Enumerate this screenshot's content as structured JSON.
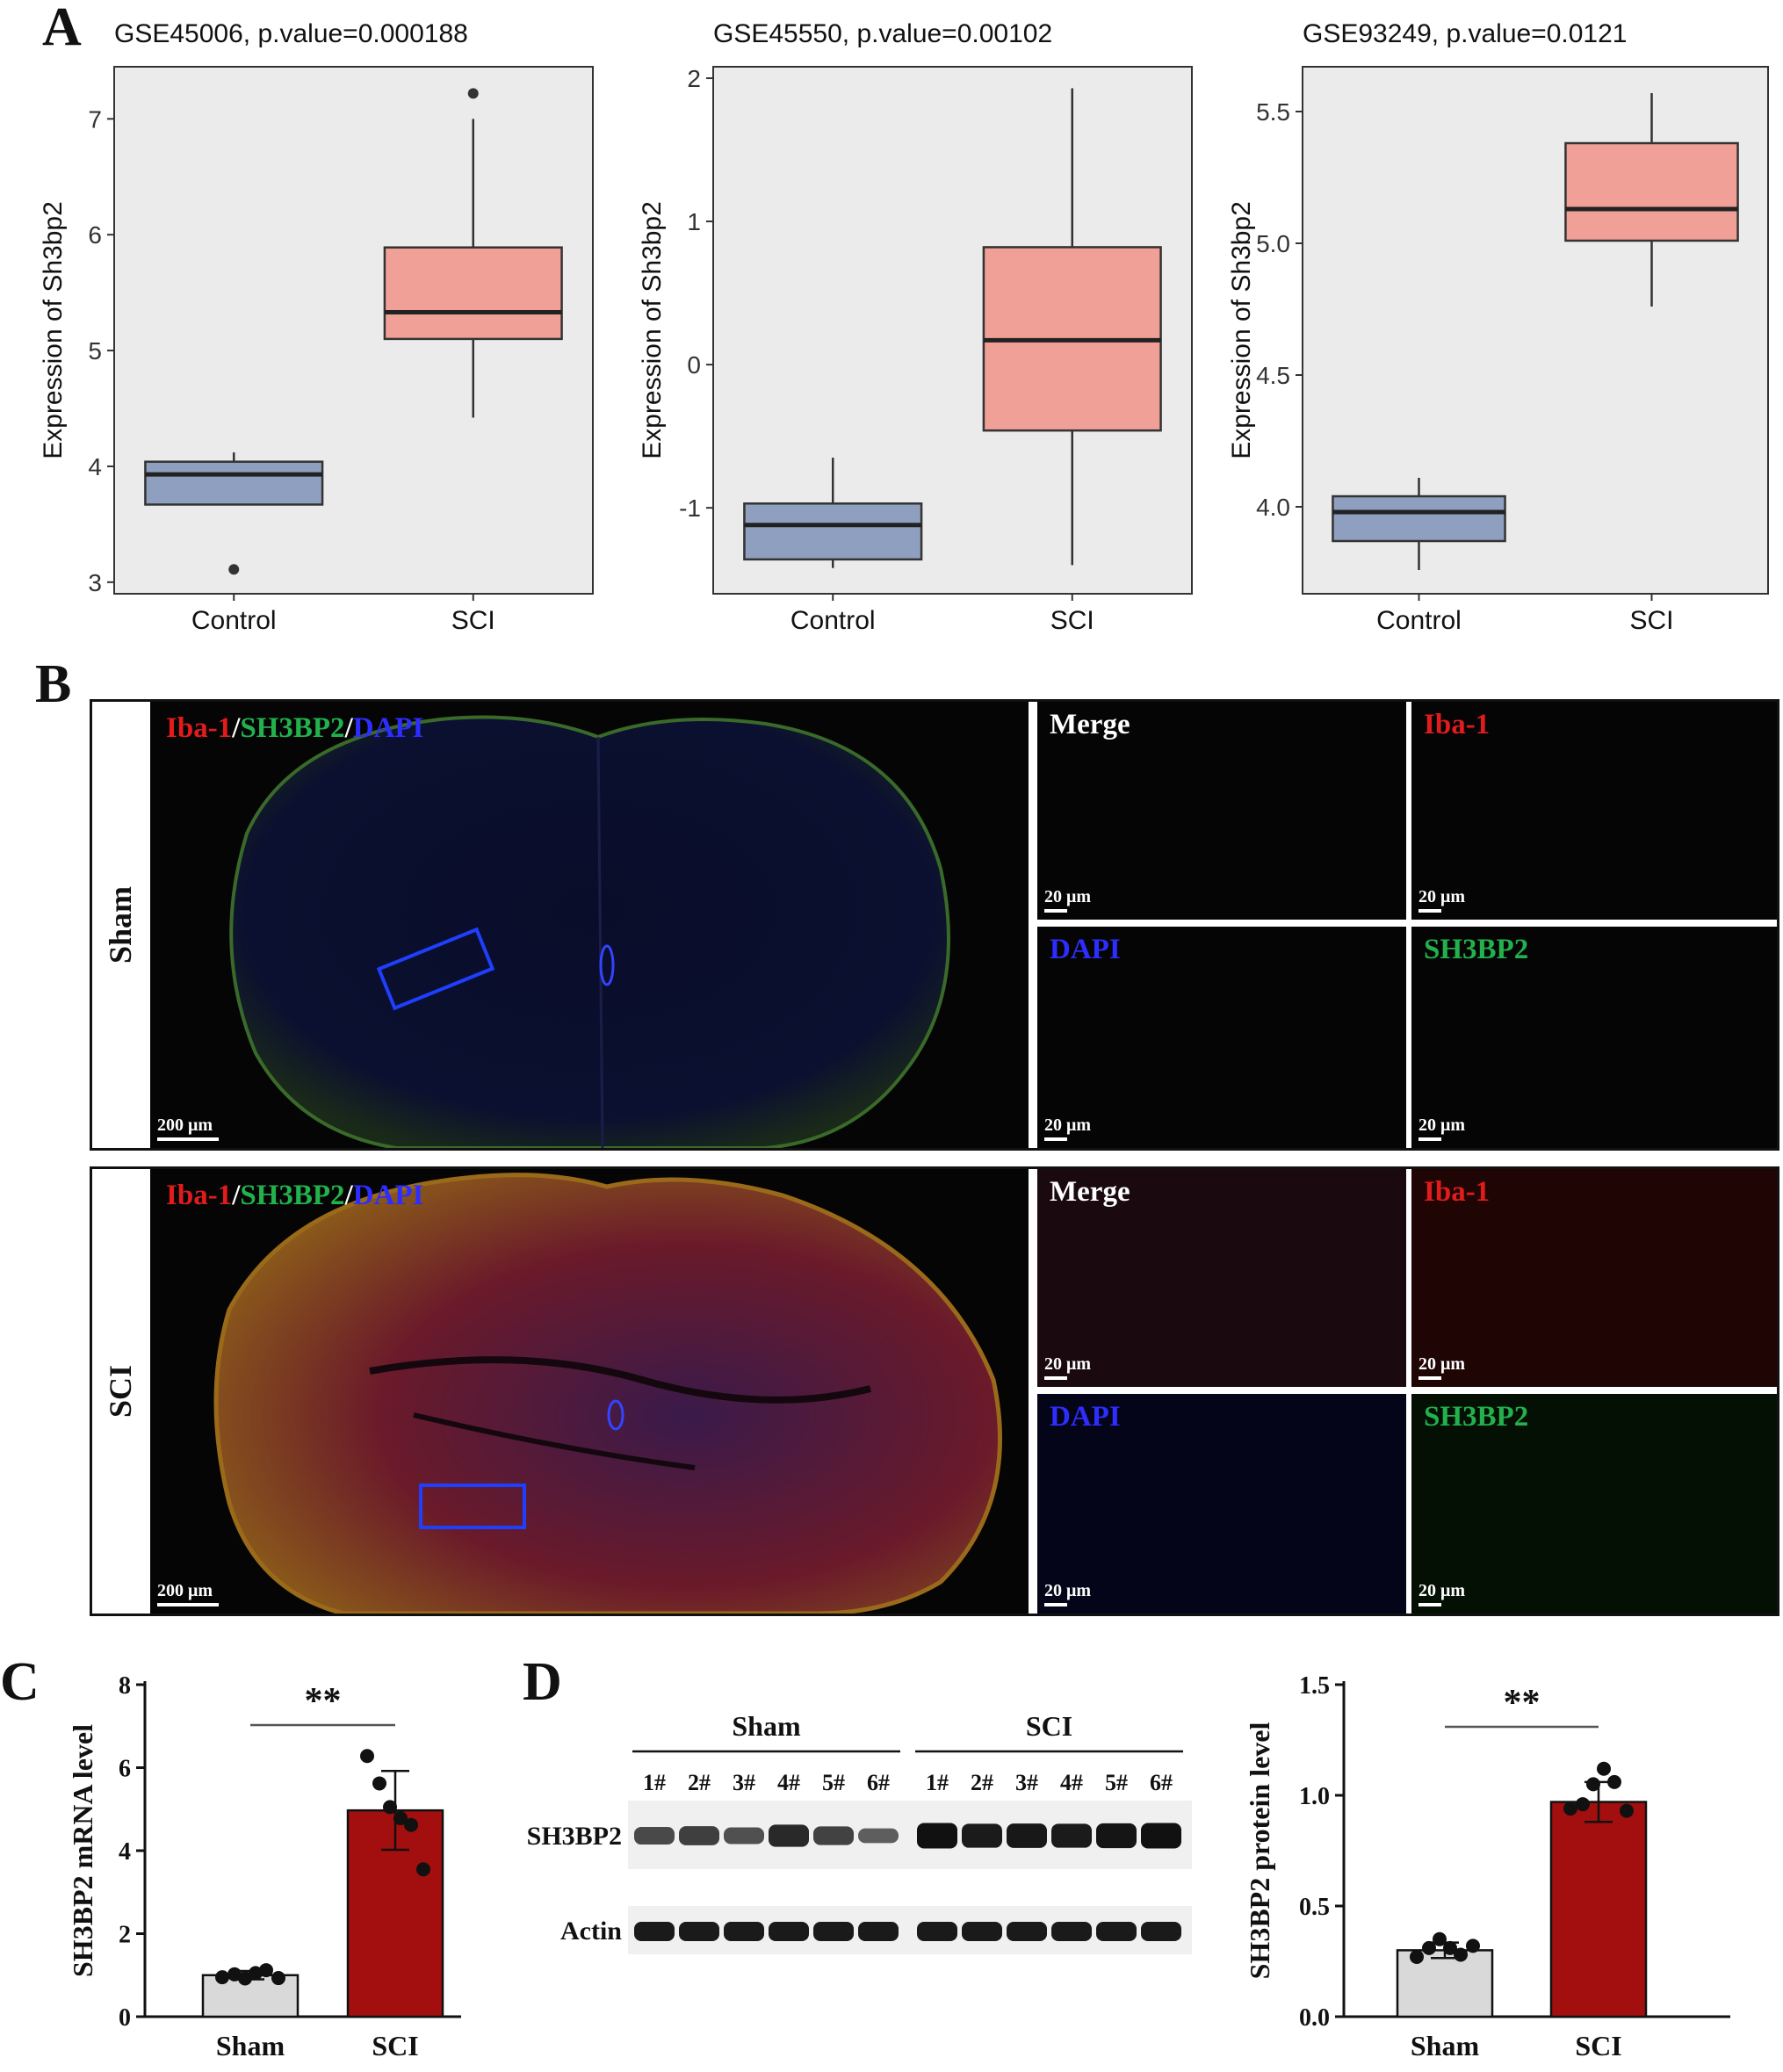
{
  "panels": {
    "a": "A",
    "b": "B",
    "c": "C",
    "d": "D"
  },
  "panel_a": {
    "plots": [
      {
        "title": "GSE45006, p.value=0.000188",
        "ylabel": "Expression of Sh3bp2",
        "ylim": [
          2.9,
          7.45
        ],
        "ticks": [
          "3",
          "4",
          "5",
          "6",
          "7"
        ],
        "tick_values": [
          3,
          4,
          5,
          6,
          7
        ]
      },
      {
        "title": "GSE45550, p.value=0.00102",
        "ylabel": "Expression of Sh3bp2",
        "ylim": [
          -1.6,
          2.08
        ],
        "ticks": [
          "-1",
          "0",
          "1",
          "2"
        ],
        "tick_values": [
          -1,
          0,
          1,
          2
        ]
      },
      {
        "title": "GSE93249, p.value=0.0121",
        "ylabel": "Expression of Sh3bp2",
        "ylim": [
          3.67,
          5.67
        ],
        "ticks": [
          "4.0",
          "4.5",
          "5.0",
          "5.5"
        ],
        "tick_values": [
          4.0,
          4.5,
          5.0,
          5.5
        ]
      }
    ],
    "categories": [
      "Control",
      "SCI"
    ],
    "colors": {
      "control": "#8f9fbf",
      "sci": "#f0a096",
      "plot_bg": "#ebebeb"
    }
  },
  "panel_b": {
    "overview_label": {
      "iba1": "Iba-1",
      "slash": "/",
      "sh3bp2": "SH3BP2",
      "dapi": "DAPI"
    },
    "rows": [
      {
        "group": "Sham",
        "overview_scale": "200 μm",
        "tiles": [
          {
            "label": "Merge",
            "scale": "20 μm"
          },
          {
            "label": "Iba-1",
            "scale": "20 μm"
          },
          {
            "label": "DAPI",
            "scale": "20 μm"
          },
          {
            "label": "SH3BP2",
            "scale": "20 μm"
          }
        ]
      },
      {
        "group": "SCI",
        "overview_scale": "200 μm",
        "tiles": [
          {
            "label": "Merge",
            "scale": "20 μm"
          },
          {
            "label": "Iba-1",
            "scale": "20 μm"
          },
          {
            "label": "DAPI",
            "scale": "20 μm"
          },
          {
            "label": "SH3BP2",
            "scale": "20 μm"
          }
        ]
      }
    ],
    "colors": {
      "iba1": "#e21b1b",
      "sh3bp2": "#22b14c",
      "dapi": "#2d2dff",
      "merge": "#ffffff",
      "roi_box": "#1f3fff"
    }
  },
  "panel_d": {
    "groups": [
      "Sham",
      "SCI"
    ],
    "lanes": [
      "1#",
      "2#",
      "3#",
      "4#",
      "5#",
      "6#",
      "1#",
      "2#",
      "3#",
      "4#",
      "5#",
      "6#"
    ],
    "band_labels": [
      "SH3BP2",
      "Actin"
    ],
    "sh3bp2_intensity": [
      0.55,
      0.62,
      0.5,
      0.78,
      0.6,
      0.4,
      0.95,
      0.88,
      0.9,
      0.88,
      0.92,
      0.95
    ]
  },
  "chart_data": [
    {
      "type": "box",
      "title": "GSE45006, p.value=0.000188",
      "ylabel": "Expression of Sh3bp2",
      "categories": [
        "Control",
        "SCI"
      ],
      "ylim": [
        2.9,
        7.45
      ],
      "boxes": [
        {
          "name": "Control",
          "whisker_low": 3.67,
          "q1": 3.67,
          "median": 3.93,
          "q3": 4.04,
          "whisker_high": 4.12,
          "outliers": [
            3.11
          ]
        },
        {
          "name": "SCI",
          "whisker_low": 4.42,
          "q1": 5.1,
          "median": 5.33,
          "q3": 5.89,
          "whisker_high": 7.0,
          "outliers": [
            7.22
          ]
        }
      ]
    },
    {
      "type": "box",
      "title": "GSE45550, p.value=0.00102",
      "ylabel": "Expression of Sh3bp2",
      "categories": [
        "Control",
        "SCI"
      ],
      "ylim": [
        -1.6,
        2.08
      ],
      "boxes": [
        {
          "name": "Control",
          "whisker_low": -1.42,
          "q1": -1.36,
          "median": -1.12,
          "q3": -0.97,
          "whisker_high": -0.65,
          "outliers": []
        },
        {
          "name": "SCI",
          "whisker_low": -1.4,
          "q1": -0.46,
          "median": 0.17,
          "q3": 0.82,
          "whisker_high": 1.93,
          "outliers": []
        }
      ]
    },
    {
      "type": "box",
      "title": "GSE93249, p.value=0.0121",
      "ylabel": "Expression of Sh3bp2",
      "categories": [
        "Control",
        "SCI"
      ],
      "ylim": [
        3.67,
        5.67
      ],
      "boxes": [
        {
          "name": "Control",
          "whisker_low": 3.76,
          "q1": 3.87,
          "median": 3.98,
          "q3": 4.04,
          "whisker_high": 4.11,
          "outliers": []
        },
        {
          "name": "SCI",
          "whisker_low": 4.76,
          "q1": 5.01,
          "median": 5.13,
          "q3": 5.38,
          "whisker_high": 5.57,
          "outliers": []
        }
      ]
    },
    {
      "type": "bar",
      "ylabel": "SH3BP2 mRNA level",
      "categories": [
        "Sham",
        "SCI"
      ],
      "values": [
        1.0,
        4.97
      ],
      "sd": [
        0.1,
        0.95
      ],
      "points": [
        [
          0.95,
          1.02,
          0.92,
          1.05,
          1.12,
          0.93
        ],
        [
          6.28,
          5.62,
          5.05,
          4.78,
          4.62,
          3.55
        ]
      ],
      "ylim": [
        0,
        8
      ],
      "ticks": [
        "0",
        "2",
        "4",
        "6",
        "8"
      ],
      "tick_values": [
        0,
        2,
        4,
        6,
        8
      ],
      "significance": "**",
      "colors": [
        "#d9d9d9",
        "#a30f0f"
      ]
    },
    {
      "type": "bar",
      "ylabel": "SH3BP2 protein level",
      "categories": [
        "Sham",
        "SCI"
      ],
      "values": [
        0.3,
        0.97
      ],
      "sd": [
        0.035,
        0.09
      ],
      "points": [
        [
          0.27,
          0.31,
          0.35,
          0.31,
          0.28,
          0.32
        ],
        [
          0.94,
          0.96,
          1.05,
          1.12,
          1.06,
          0.93
        ]
      ],
      "ylim": [
        0,
        1.5
      ],
      "ticks": [
        "0.0",
        "0.5",
        "1.0",
        "1.5"
      ],
      "tick_values": [
        0,
        0.5,
        1.0,
        1.5
      ],
      "significance": "**",
      "colors": [
        "#d9d9d9",
        "#a30f0f"
      ]
    }
  ]
}
